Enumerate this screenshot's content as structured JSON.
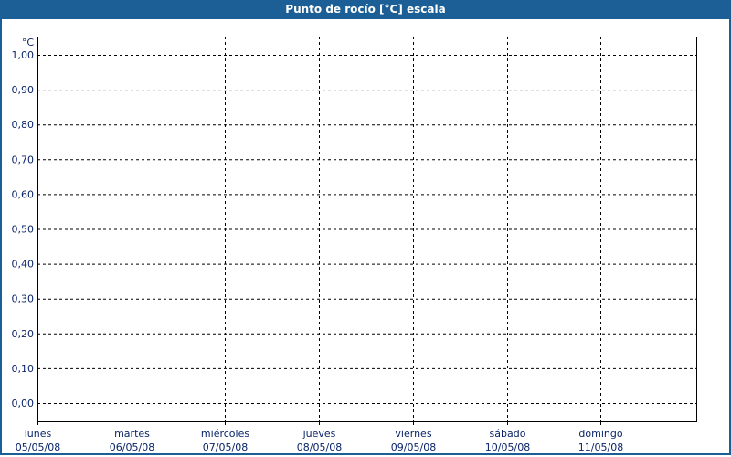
{
  "window": {
    "title": "Punto de rocío [°C] escala"
  },
  "chart_data": {
    "type": "line",
    "title": "Punto de rocío [°C] escala",
    "ylabel": "°C",
    "ylim": [
      0,
      1
    ],
    "yticks": [
      "1,00",
      "0,90",
      "0,80",
      "0,70",
      "0,60",
      "0,50",
      "0,40",
      "0,30",
      "0,20",
      "0,10",
      "0,00"
    ],
    "xticks": [
      {
        "day": "lunes",
        "date": "05/05/08"
      },
      {
        "day": "martes",
        "date": "06/05/08"
      },
      {
        "day": "miércoles",
        "date": "07/05/08"
      },
      {
        "day": "jueves",
        "date": "08/05/08"
      },
      {
        "day": "viernes",
        "date": "09/05/08"
      },
      {
        "day": "sábado",
        "date": "10/05/08"
      },
      {
        "day": "domingo",
        "date": "11/05/08"
      }
    ],
    "grid": true,
    "series": [],
    "colors": {
      "title_bar": "#1c5f96",
      "text": "#0a246a",
      "grid": "#000000"
    }
  }
}
